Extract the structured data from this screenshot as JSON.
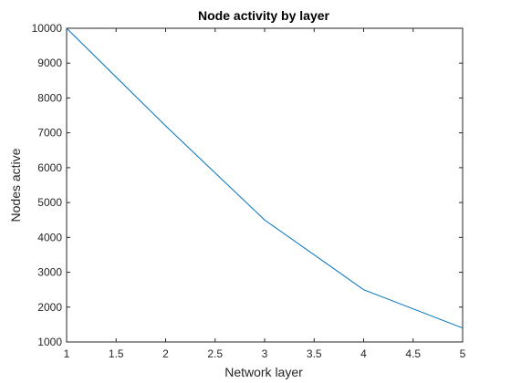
{
  "chart_data": {
    "type": "line",
    "title": "Node activity by layer",
    "xlabel": "Network layer",
    "ylabel": "Nodes active",
    "x": [
      1,
      2,
      3,
      4,
      5
    ],
    "series": [
      {
        "values": [
          10000,
          7200,
          4500,
          2500,
          1400
        ],
        "color": "#0072BD"
      }
    ],
    "xlim": [
      1,
      5
    ],
    "ylim": [
      1000,
      10000
    ],
    "xticks": [
      1,
      1.5,
      2,
      2.5,
      3,
      3.5,
      4,
      4.5,
      5
    ],
    "xtick_labels": [
      "1",
      "1.5",
      "2",
      "2.5",
      "3",
      "3.5",
      "4",
      "4.5",
      "5"
    ],
    "yticks": [
      1000,
      2000,
      3000,
      4000,
      5000,
      6000,
      7000,
      8000,
      9000,
      10000
    ],
    "ytick_labels": [
      "1000",
      "2000",
      "3000",
      "4000",
      "5000",
      "6000",
      "7000",
      "8000",
      "9000",
      "10000"
    ],
    "grid": false,
    "legend": "none"
  }
}
